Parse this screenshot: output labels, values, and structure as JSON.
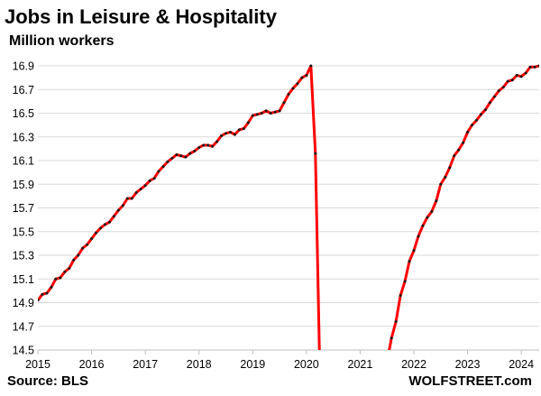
{
  "header": {
    "title": "Jobs in Leisure & Hospitality",
    "subtitle": "Million workers"
  },
  "footer": {
    "source": "Source: BLS",
    "credit": "WOLFSTREET.com"
  },
  "colors": {
    "line": "#ff0000",
    "marker": "#1a1a1a",
    "grid": "#d9d9d9"
  },
  "chart_data": {
    "type": "line",
    "title": "Jobs in Leisure & Hospitality",
    "ylabel": "Million workers",
    "ylim": [
      14.5,
      16.9
    ],
    "xlim": [
      "2015-01",
      "2024-05"
    ],
    "yticks": [
      14.5,
      14.7,
      14.9,
      15.1,
      15.3,
      15.5,
      15.7,
      15.9,
      16.1,
      16.3,
      16.5,
      16.7,
      16.9
    ],
    "ytick_labels": [
      "14.5",
      "14.7",
      "14.9",
      "15.1",
      "15.3",
      "15.5",
      "15.7",
      "15.9",
      "16.1",
      "16.3",
      "16.5",
      "16.7",
      "16.9"
    ],
    "xticks": [
      "2015-01",
      "2016-01",
      "2017-01",
      "2018-01",
      "2019-01",
      "2020-01",
      "2021-01",
      "2022-01",
      "2023-01",
      "2024-01"
    ],
    "xtick_labels": [
      "2015",
      "2016",
      "2017",
      "2018",
      "2019",
      "2020",
      "2021",
      "2022",
      "2023",
      "2024"
    ],
    "grid": "horizontal",
    "markers": true,
    "series": [
      {
        "x": [
          "2015-01",
          "2015-02",
          "2015-03",
          "2015-04",
          "2015-05",
          "2015-06",
          "2015-07",
          "2015-08",
          "2015-09",
          "2015-10",
          "2015-11",
          "2015-12",
          "2016-01",
          "2016-02",
          "2016-03",
          "2016-04",
          "2016-05",
          "2016-06",
          "2016-07",
          "2016-08",
          "2016-09",
          "2016-10",
          "2016-11",
          "2016-12",
          "2017-01",
          "2017-02",
          "2017-03",
          "2017-04",
          "2017-05",
          "2017-06",
          "2017-07",
          "2017-08",
          "2017-09",
          "2017-10",
          "2017-11",
          "2017-12",
          "2018-01",
          "2018-02",
          "2018-03",
          "2018-04",
          "2018-05",
          "2018-06",
          "2018-07",
          "2018-08",
          "2018-09",
          "2018-10",
          "2018-11",
          "2018-12",
          "2019-01",
          "2019-02",
          "2019-03",
          "2019-04",
          "2019-05",
          "2019-06",
          "2019-07",
          "2019-08",
          "2019-09",
          "2019-10",
          "2019-11",
          "2019-12",
          "2020-01",
          "2020-02",
          "2020-03",
          "2020-04"
        ],
        "y": [
          14.92,
          14.97,
          14.98,
          15.03,
          15.1,
          15.11,
          15.16,
          15.19,
          15.26,
          15.3,
          15.36,
          15.39,
          15.44,
          15.49,
          15.53,
          15.56,
          15.58,
          15.63,
          15.68,
          15.72,
          15.78,
          15.78,
          15.83,
          15.86,
          15.89,
          15.93,
          15.95,
          16.01,
          16.05,
          16.09,
          16.12,
          16.15,
          16.14,
          16.13,
          16.16,
          16.18,
          16.21,
          16.23,
          16.23,
          16.22,
          16.26,
          16.31,
          16.33,
          16.34,
          16.32,
          16.36,
          16.37,
          16.42,
          16.48,
          16.49,
          16.5,
          16.52,
          16.5,
          16.51,
          16.52,
          16.59,
          16.66,
          16.71,
          16.75,
          16.8,
          16.82,
          16.9,
          16.16,
          14.3
        ]
      },
      {
        "x": [
          "2021-07",
          "2021-08",
          "2021-09",
          "2021-10",
          "2021-11",
          "2021-12",
          "2022-01",
          "2022-02",
          "2022-03",
          "2022-04",
          "2022-05",
          "2022-06",
          "2022-07",
          "2022-08",
          "2022-09",
          "2022-10",
          "2022-11",
          "2022-12",
          "2023-01",
          "2023-02",
          "2023-03",
          "2023-04",
          "2023-05",
          "2023-06",
          "2023-07",
          "2023-08",
          "2023-09",
          "2023-10",
          "2023-11",
          "2023-12",
          "2024-01",
          "2024-02",
          "2024-03",
          "2024-04",
          "2024-05"
        ],
        "y": [
          14.4,
          14.6,
          14.74,
          14.96,
          15.08,
          15.25,
          15.34,
          15.46,
          15.55,
          15.62,
          15.67,
          15.76,
          15.9,
          15.96,
          16.04,
          16.14,
          16.19,
          16.25,
          16.34,
          16.4,
          16.44,
          16.49,
          16.53,
          16.59,
          16.64,
          16.69,
          16.72,
          16.77,
          16.78,
          16.82,
          16.81,
          16.84,
          16.89,
          16.89,
          16.9
        ]
      }
    ]
  }
}
